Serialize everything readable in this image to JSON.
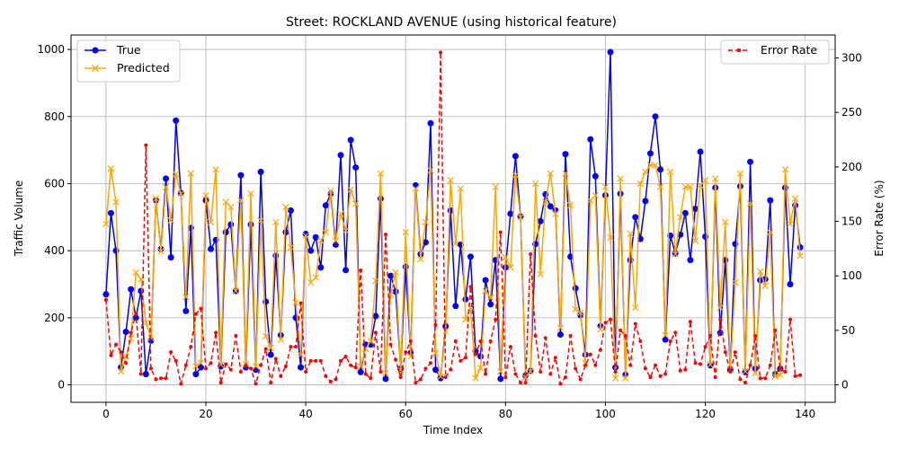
{
  "chart_data": {
    "type": "line",
    "title": "Street: ROCKLAND AVENUE (using historical feature)",
    "xlabel": "Time Index",
    "ylabel": "Traffic Volume",
    "y2label": "Error Rate (%)",
    "xlim": [
      -7,
      146
    ],
    "ylim": [
      -52,
      1043
    ],
    "y2lim": [
      -16,
      321
    ],
    "xticks": [
      0,
      20,
      40,
      60,
      80,
      100,
      120,
      140
    ],
    "yticks": [
      0,
      200,
      400,
      600,
      800,
      1000
    ],
    "y2ticks": [
      0,
      50,
      100,
      150,
      200,
      250,
      300
    ],
    "grid": true,
    "legend_left": "upper-left",
    "legend_right": "upper-right",
    "series": [
      {
        "name": "True",
        "axis": "left",
        "color": "#0000ff",
        "marker": "circle",
        "values": [
          270,
          512,
          400,
          52,
          158,
          285,
          200,
          280,
          32,
          132,
          550,
          405,
          615,
          380,
          788,
          572,
          220,
          468,
          32,
          52,
          550,
          405,
          432,
          55,
          455,
          478,
          280,
          625,
          52,
          478,
          45,
          635,
          248,
          90,
          385,
          148,
          455,
          520,
          200,
          52,
          450,
          400,
          440,
          350,
          535,
          570,
          418,
          685,
          342,
          730,
          648,
          38,
          120,
          120,
          205,
          555,
          18,
          325,
          278,
          48,
          352,
          95,
          595,
          390,
          425,
          780,
          45,
          20,
          175,
          520,
          235,
          418,
          255,
          382,
          100,
          85,
          312,
          240,
          372,
          18,
          350,
          510,
          682,
          502,
          28,
          42,
          420,
          488,
          568,
          532,
          520,
          150,
          688,
          382,
          288,
          208,
          90,
          732,
          622,
          175,
          565,
          992,
          52,
          570,
          30,
          372,
          500,
          435,
          548,
          690,
          800,
          642,
          135,
          445,
          392,
          448,
          512,
          372,
          525,
          695,
          442,
          58,
          588,
          155,
          372,
          45,
          420,
          592,
          38,
          665,
          48,
          312,
          315,
          550,
          32,
          48,
          588,
          300,
          535,
          410
        ]
      },
      {
        "name": "Predicted",
        "axis": "left",
        "color": "#ffa500",
        "marker": "x",
        "values": [
          480,
          645,
          545,
          40,
          85,
          138,
          335,
          315,
          185,
          140,
          555,
          398,
          590,
          490,
          628,
          570,
          262,
          630,
          55,
          65,
          565,
          485,
          642,
          60,
          545,
          530,
          280,
          550,
          62,
          570,
          55,
          490,
          145,
          110,
          485,
          135,
          530,
          410,
          245,
          90,
          445,
          305,
          320,
          430,
          455,
          578,
          430,
          510,
          460,
          582,
          540,
          55,
          108,
          130,
          310,
          630,
          35,
          270,
          335,
          45,
          455,
          85,
          585,
          375,
          485,
          640,
          95,
          25,
          160,
          610,
          420,
          585,
          195,
          230,
          20,
          50,
          280,
          260,
          590,
          40,
          380,
          350,
          625,
          500,
          22,
          40,
          600,
          330,
          545,
          630,
          510,
          170,
          630,
          535,
          225,
          215,
          65,
          550,
          565,
          165,
          590,
          440,
          20,
          615,
          20,
          450,
          230,
          600,
          635,
          655,
          655,
          590,
          148,
          635,
          390,
          500,
          590,
          590,
          430,
          595,
          610,
          60,
          615,
          230,
          485,
          45,
          305,
          630,
          40,
          540,
          35,
          338,
          295,
          455,
          25,
          30,
          642,
          480,
          555,
          385
        ]
      },
      {
        "name": "Error Rate",
        "axis": "right",
        "color": "#ff0000",
        "marker": "dot",
        "dashed": true,
        "values": [
          78,
          27,
          37,
          30,
          20,
          48,
          65,
          10,
          220,
          15,
          5,
          6,
          6,
          30,
          22,
          1,
          18,
          35,
          65,
          70,
          15,
          20,
          48,
          2,
          19,
          14,
          45,
          12,
          18,
          15,
          1,
          18,
          33,
          2,
          24,
          8,
          17,
          35,
          35,
          75,
          12,
          22,
          22,
          22,
          8,
          3,
          5,
          22,
          26,
          18,
          16,
          105,
          10,
          6,
          48,
          12,
          138,
          37,
          23,
          7,
          30,
          40,
          2,
          5,
          15,
          20,
          55,
          305,
          7,
          14,
          40,
          22,
          25,
          90,
          28,
          40,
          10,
          40,
          60,
          140,
          7,
          35,
          10,
          2,
          2,
          120,
          45,
          12,
          43,
          10,
          25,
          1,
          7,
          45,
          15,
          5,
          18,
          28,
          18,
          32,
          57,
          60,
          12,
          50,
          45,
          18,
          56,
          40,
          15,
          7,
          18,
          8,
          10,
          40,
          48,
          13,
          14,
          58,
          20,
          19,
          35,
          45,
          7,
          60,
          30,
          12,
          30,
          5,
          2,
          18,
          45,
          6,
          6,
          18,
          50,
          15,
          12,
          60,
          8,
          9
        ]
      }
    ]
  }
}
